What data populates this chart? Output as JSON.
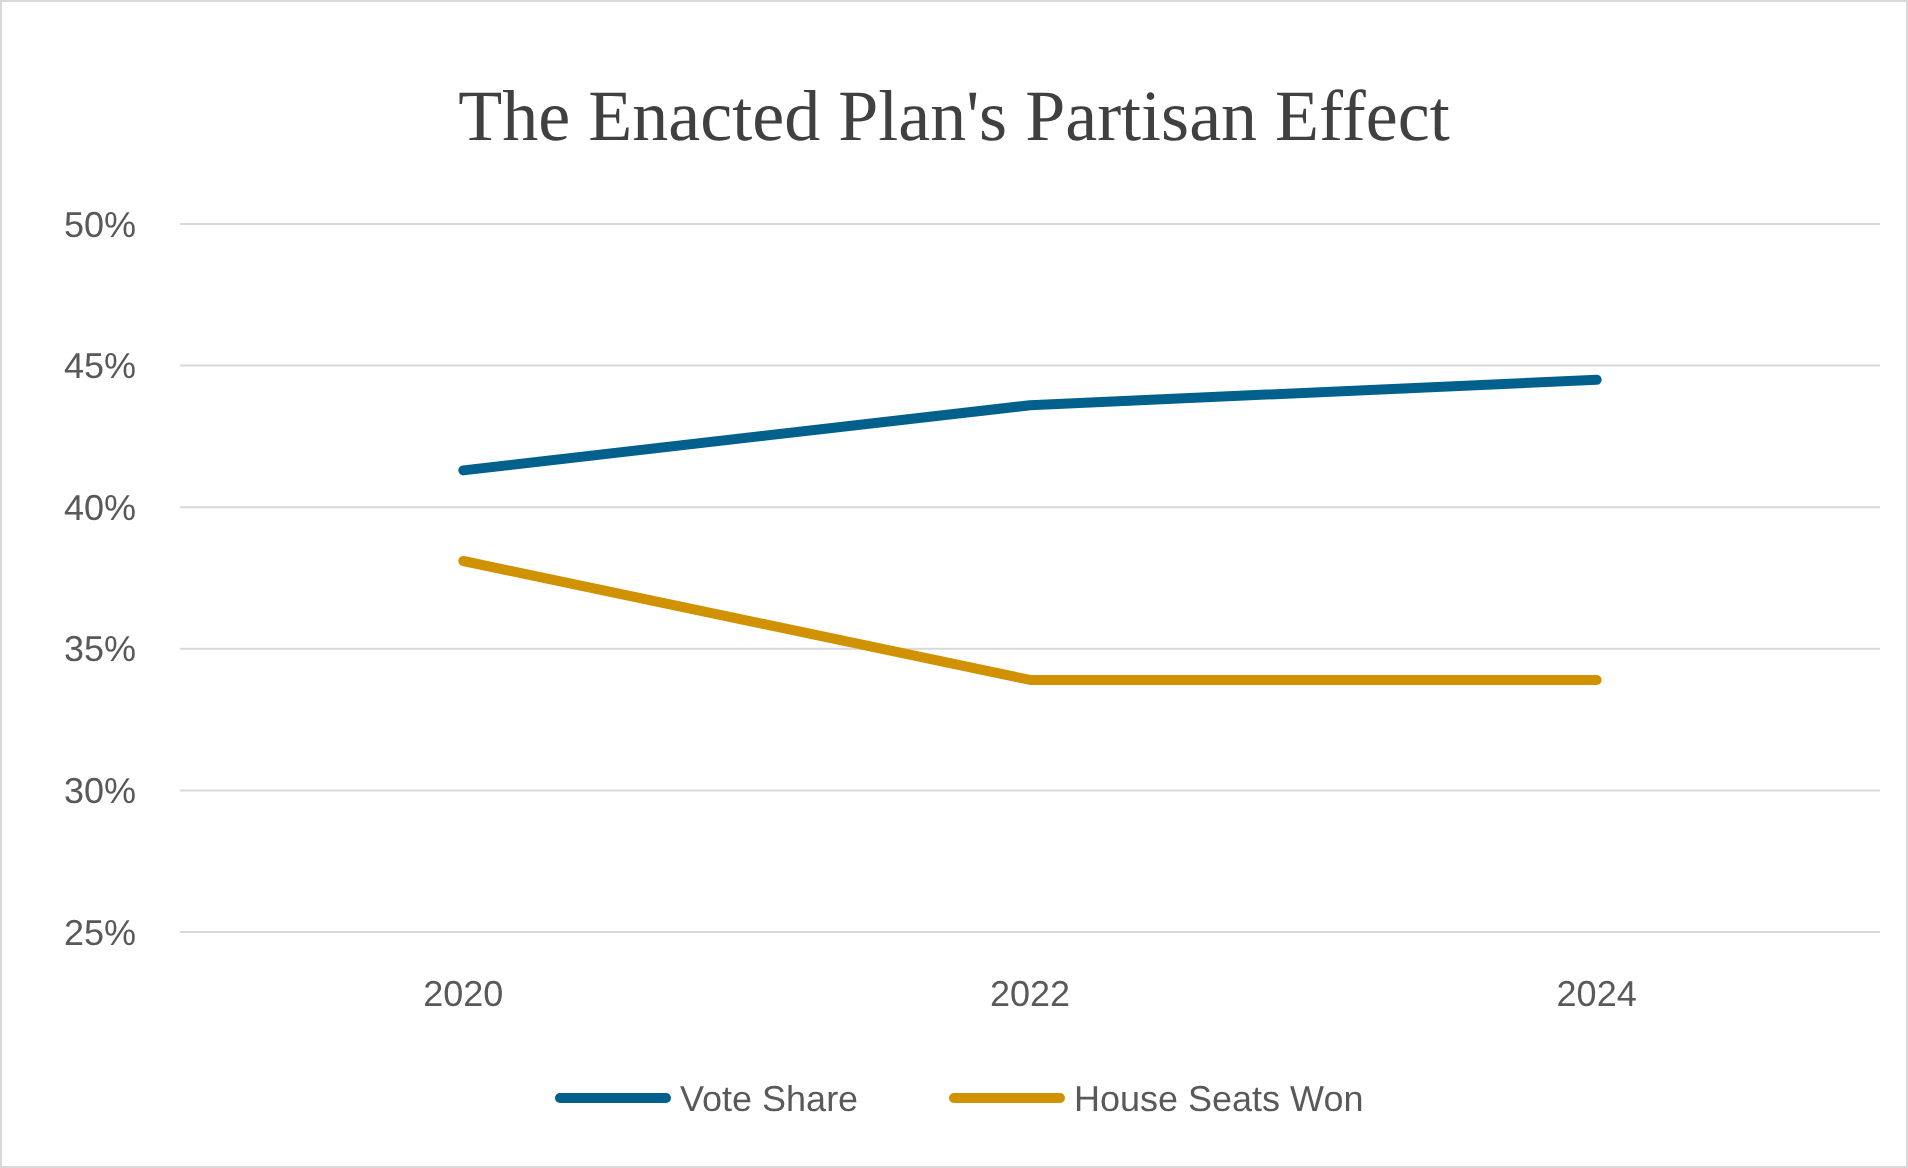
{
  "chart_data": {
    "type": "line",
    "title": "The Enacted Plan's Partisan Effect",
    "categories": [
      "2020",
      "2022",
      "2024"
    ],
    "series": [
      {
        "name": "Vote Share",
        "color": "#02608c",
        "values": [
          41.3,
          43.6,
          44.5
        ]
      },
      {
        "name": "House Seats Won",
        "color": "#d09200",
        "values": [
          38.1,
          33.9,
          33.9
        ]
      }
    ],
    "ylim": [
      25,
      50
    ],
    "yticks": [
      {
        "value": 25,
        "label": "25%"
      },
      {
        "value": 30,
        "label": "30%"
      },
      {
        "value": 35,
        "label": "35%"
      },
      {
        "value": 40,
        "label": "40%"
      },
      {
        "value": 45,
        "label": "45%"
      },
      {
        "value": 50,
        "label": "50%"
      }
    ],
    "grid": "y",
    "legend": "bottom",
    "marker": "none",
    "line_style": "solid"
  }
}
